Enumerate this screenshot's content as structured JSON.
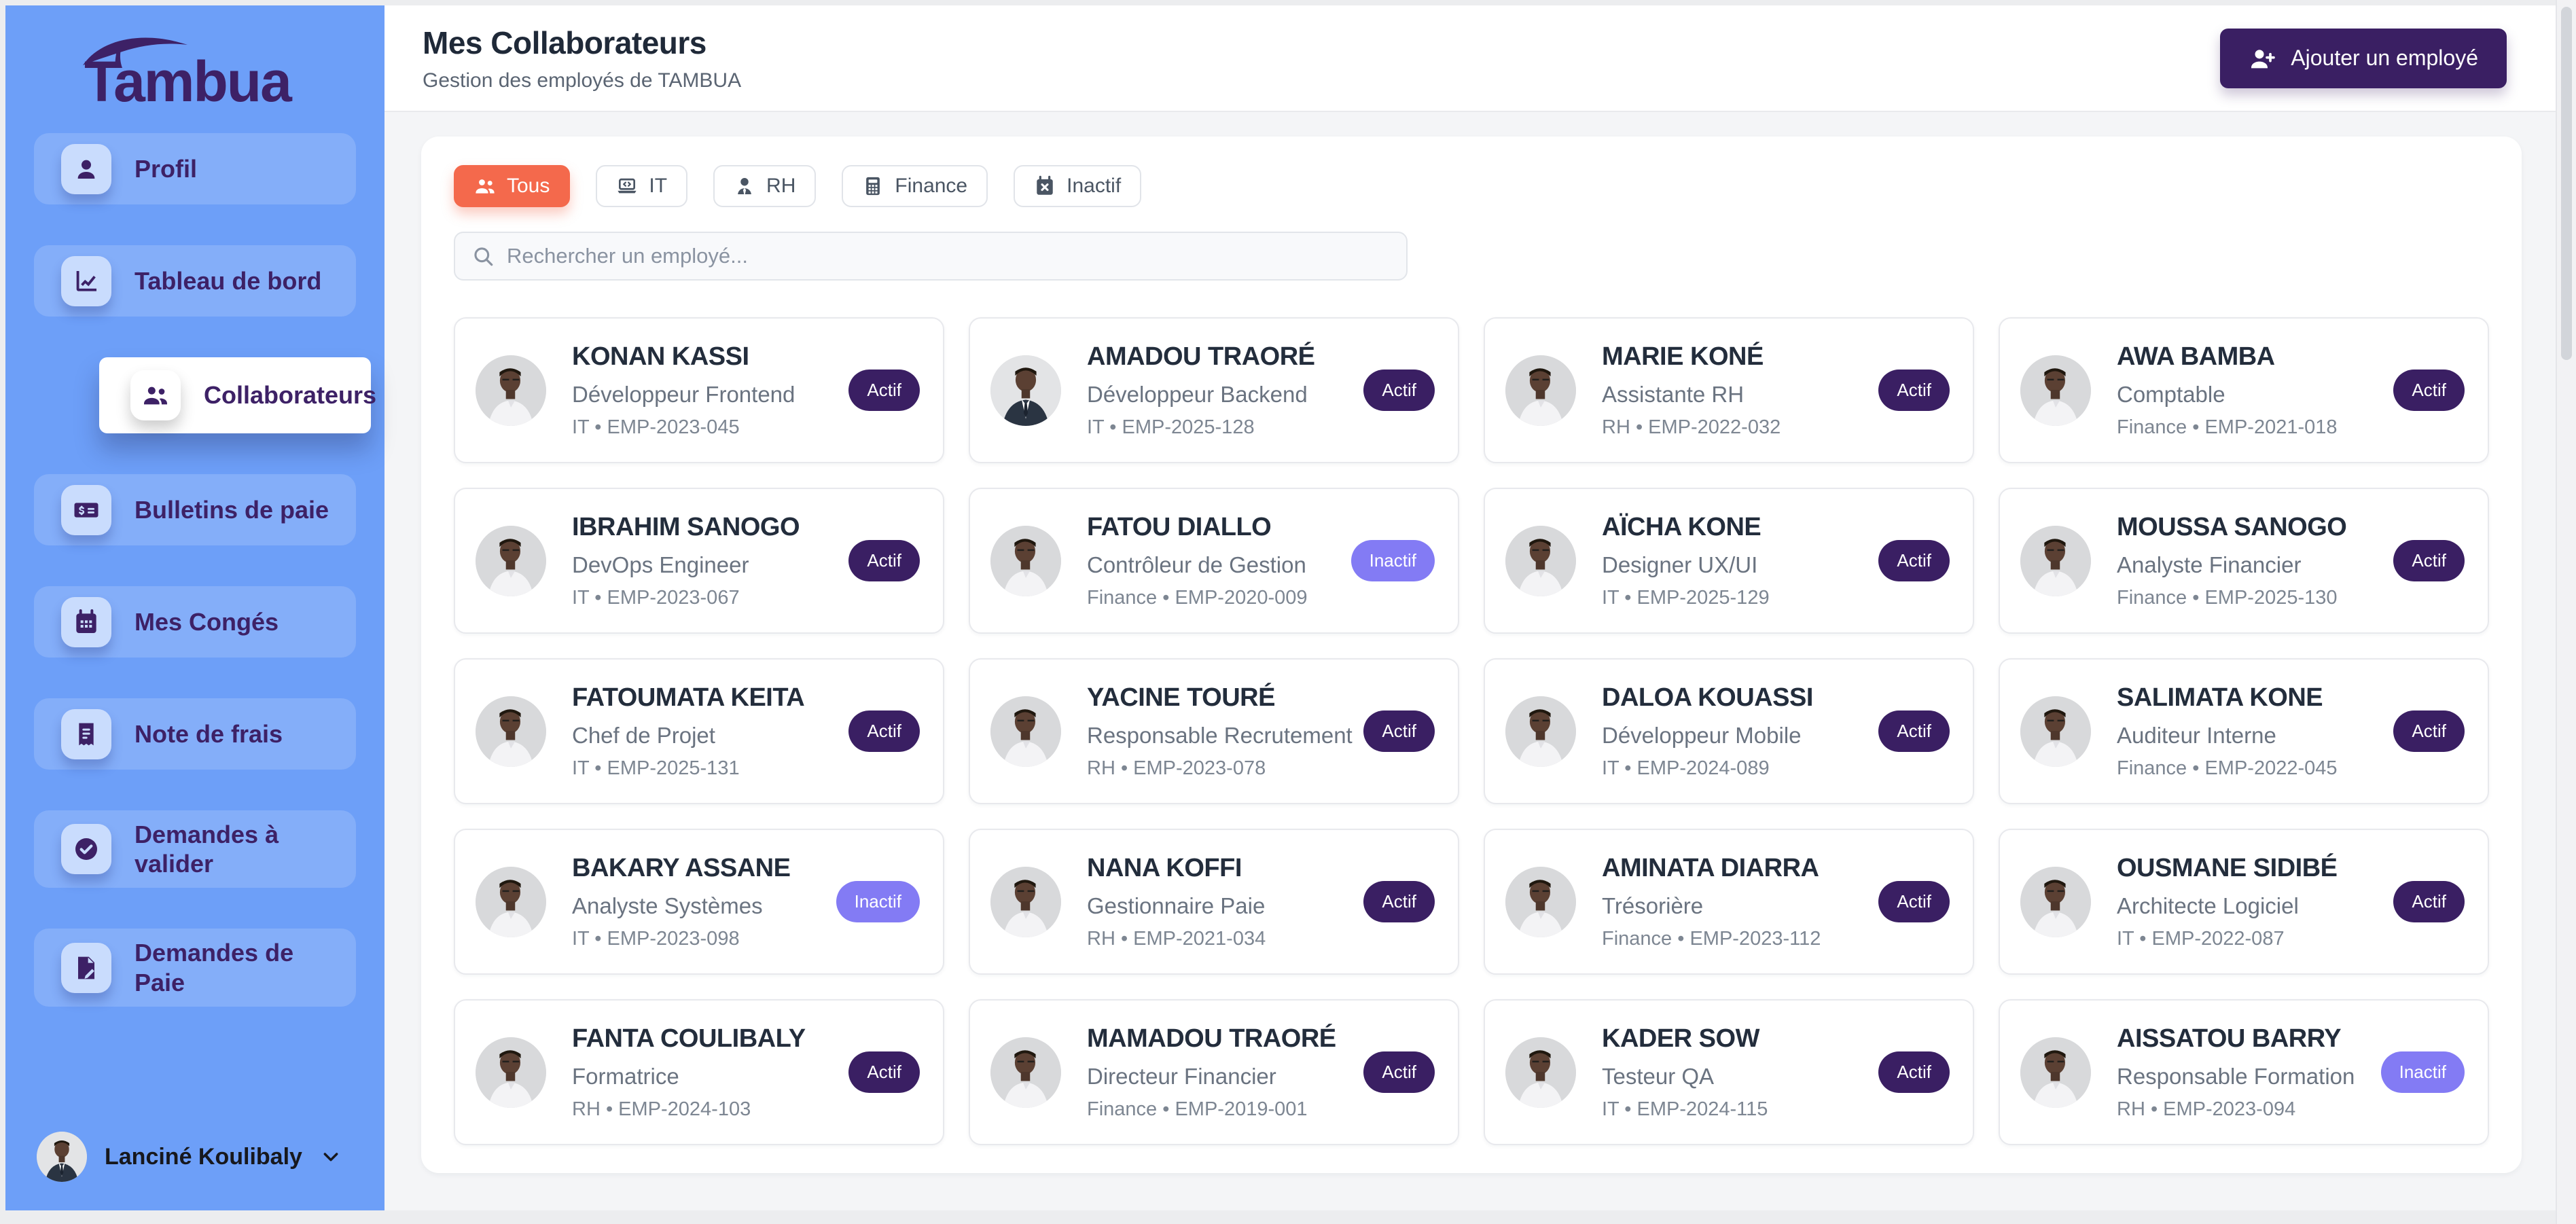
{
  "brand": {
    "name": "Tambua"
  },
  "sidebar": {
    "items": [
      {
        "label": "Profil",
        "icon": "user-icon",
        "active": false
      },
      {
        "label": "Tableau de bord",
        "icon": "chart-line-icon",
        "active": false
      },
      {
        "label": "Collaborateurs",
        "icon": "users-icon",
        "active": true
      },
      {
        "label": "Bulletins de paie",
        "icon": "money-check-icon",
        "active": false
      },
      {
        "label": "Mes Congés",
        "icon": "calendar-icon",
        "active": false
      },
      {
        "label": "Note de frais",
        "icon": "receipt-icon",
        "active": false
      },
      {
        "label": "Demandes à valider",
        "icon": "circle-check-icon",
        "active": false
      },
      {
        "label": "Demandes de Paie",
        "icon": "file-pen-icon",
        "active": false
      }
    ],
    "user": {
      "name": "Lanciné Koulibaly"
    }
  },
  "header": {
    "title": "Mes Collaborateurs",
    "subtitle": "Gestion des employés de TAMBUA",
    "add_button_label": "Ajouter un employé"
  },
  "filters": [
    {
      "label": "Tous",
      "icon": "users-icon",
      "active": true
    },
    {
      "label": "IT",
      "icon": "laptop-icon",
      "active": false
    },
    {
      "label": "RH",
      "icon": "user-tie-icon",
      "active": false
    },
    {
      "label": "Finance",
      "icon": "calculator-icon",
      "active": false
    },
    {
      "label": "Inactif",
      "icon": "calendar-x-icon",
      "active": false
    }
  ],
  "search": {
    "placeholder": "Rechercher un employé..."
  },
  "status_labels": {
    "active": "Actif",
    "inactive": "Inactif"
  },
  "colors": {
    "sidebar_blue": "#6D9FF8",
    "brand_purple": "#3D2166",
    "button_purple": "#3A1F63",
    "accent_orange": "#F4694C",
    "badge_active": "#3A1F63",
    "badge_inactive": "#837BF4"
  },
  "employees": [
    {
      "name": "KONAN KASSI",
      "role": "Développeur Frontend",
      "department": "IT",
      "employee_id": "EMP-2023-045",
      "status": "Actif",
      "avatar": "shirt"
    },
    {
      "name": "AMADOU TRAORÉ",
      "role": "Développeur Backend",
      "department": "IT",
      "employee_id": "EMP-2025-128",
      "status": "Actif",
      "avatar": "suit"
    },
    {
      "name": "MARIE KONÉ",
      "role": "Assistante RH",
      "department": "RH",
      "employee_id": "EMP-2022-032",
      "status": "Actif",
      "avatar": "shirt"
    },
    {
      "name": "AWA BAMBA",
      "role": "Comptable",
      "department": "Finance",
      "employee_id": "EMP-2021-018",
      "status": "Actif",
      "avatar": "shirt"
    },
    {
      "name": "IBRAHIM SANOGO",
      "role": "DevOps Engineer",
      "department": "IT",
      "employee_id": "EMP-2023-067",
      "status": "Actif",
      "avatar": "shirt"
    },
    {
      "name": "FATOU DIALLO",
      "role": "Contrôleur de Gestion",
      "department": "Finance",
      "employee_id": "EMP-2020-009",
      "status": "Inactif",
      "avatar": "shirt"
    },
    {
      "name": "AÏCHA KONE",
      "role": "Designer UX/UI",
      "department": "IT",
      "employee_id": "EMP-2025-129",
      "status": "Actif",
      "avatar": "shirt"
    },
    {
      "name": "MOUSSA SANOGO",
      "role": "Analyste Financier",
      "department": "Finance",
      "employee_id": "EMP-2025-130",
      "status": "Actif",
      "avatar": "shirt"
    },
    {
      "name": "FATOUMATA KEITA",
      "role": "Chef de Projet",
      "department": "IT",
      "employee_id": "EMP-2025-131",
      "status": "Actif",
      "avatar": "shirt"
    },
    {
      "name": "YACINE TOURÉ",
      "role": "Responsable Recrutement",
      "department": "RH",
      "employee_id": "EMP-2023-078",
      "status": "Actif",
      "avatar": "shirt"
    },
    {
      "name": "DALOA KOUASSI",
      "role": "Développeur Mobile",
      "department": "IT",
      "employee_id": "EMP-2024-089",
      "status": "Actif",
      "avatar": "shirt"
    },
    {
      "name": "SALIMATA KONE",
      "role": "Auditeur Interne",
      "department": "Finance",
      "employee_id": "EMP-2022-045",
      "status": "Actif",
      "avatar": "shirt"
    },
    {
      "name": "BAKARY ASSANE",
      "role": "Analyste Systèmes",
      "department": "IT",
      "employee_id": "EMP-2023-098",
      "status": "Inactif",
      "avatar": "shirt"
    },
    {
      "name": "NANA KOFFI",
      "role": "Gestionnaire Paie",
      "department": "RH",
      "employee_id": "EMP-2021-034",
      "status": "Actif",
      "avatar": "shirt"
    },
    {
      "name": "AMINATA DIARRA",
      "role": "Trésorière",
      "department": "Finance",
      "employee_id": "EMP-2023-112",
      "status": "Actif",
      "avatar": "shirt"
    },
    {
      "name": "OUSMANE SIDIBÉ",
      "role": "Architecte Logiciel",
      "department": "IT",
      "employee_id": "EMP-2022-087",
      "status": "Actif",
      "avatar": "shirt"
    },
    {
      "name": "FANTA COULIBALY",
      "role": "Formatrice",
      "department": "RH",
      "employee_id": "EMP-2024-103",
      "status": "Actif",
      "avatar": "shirt"
    },
    {
      "name": "MAMADOU TRAORÉ",
      "role": "Directeur Financier",
      "department": "Finance",
      "employee_id": "EMP-2019-001",
      "status": "Actif",
      "avatar": "shirt"
    },
    {
      "name": "KADER SOW",
      "role": "Testeur QA",
      "department": "IT",
      "employee_id": "EMP-2024-115",
      "status": "Actif",
      "avatar": "shirt"
    },
    {
      "name": "AISSATOU BARRY",
      "role": "Responsable Formation",
      "department": "RH",
      "employee_id": "EMP-2023-094",
      "status": "Inactif",
      "avatar": "shirt"
    }
  ]
}
